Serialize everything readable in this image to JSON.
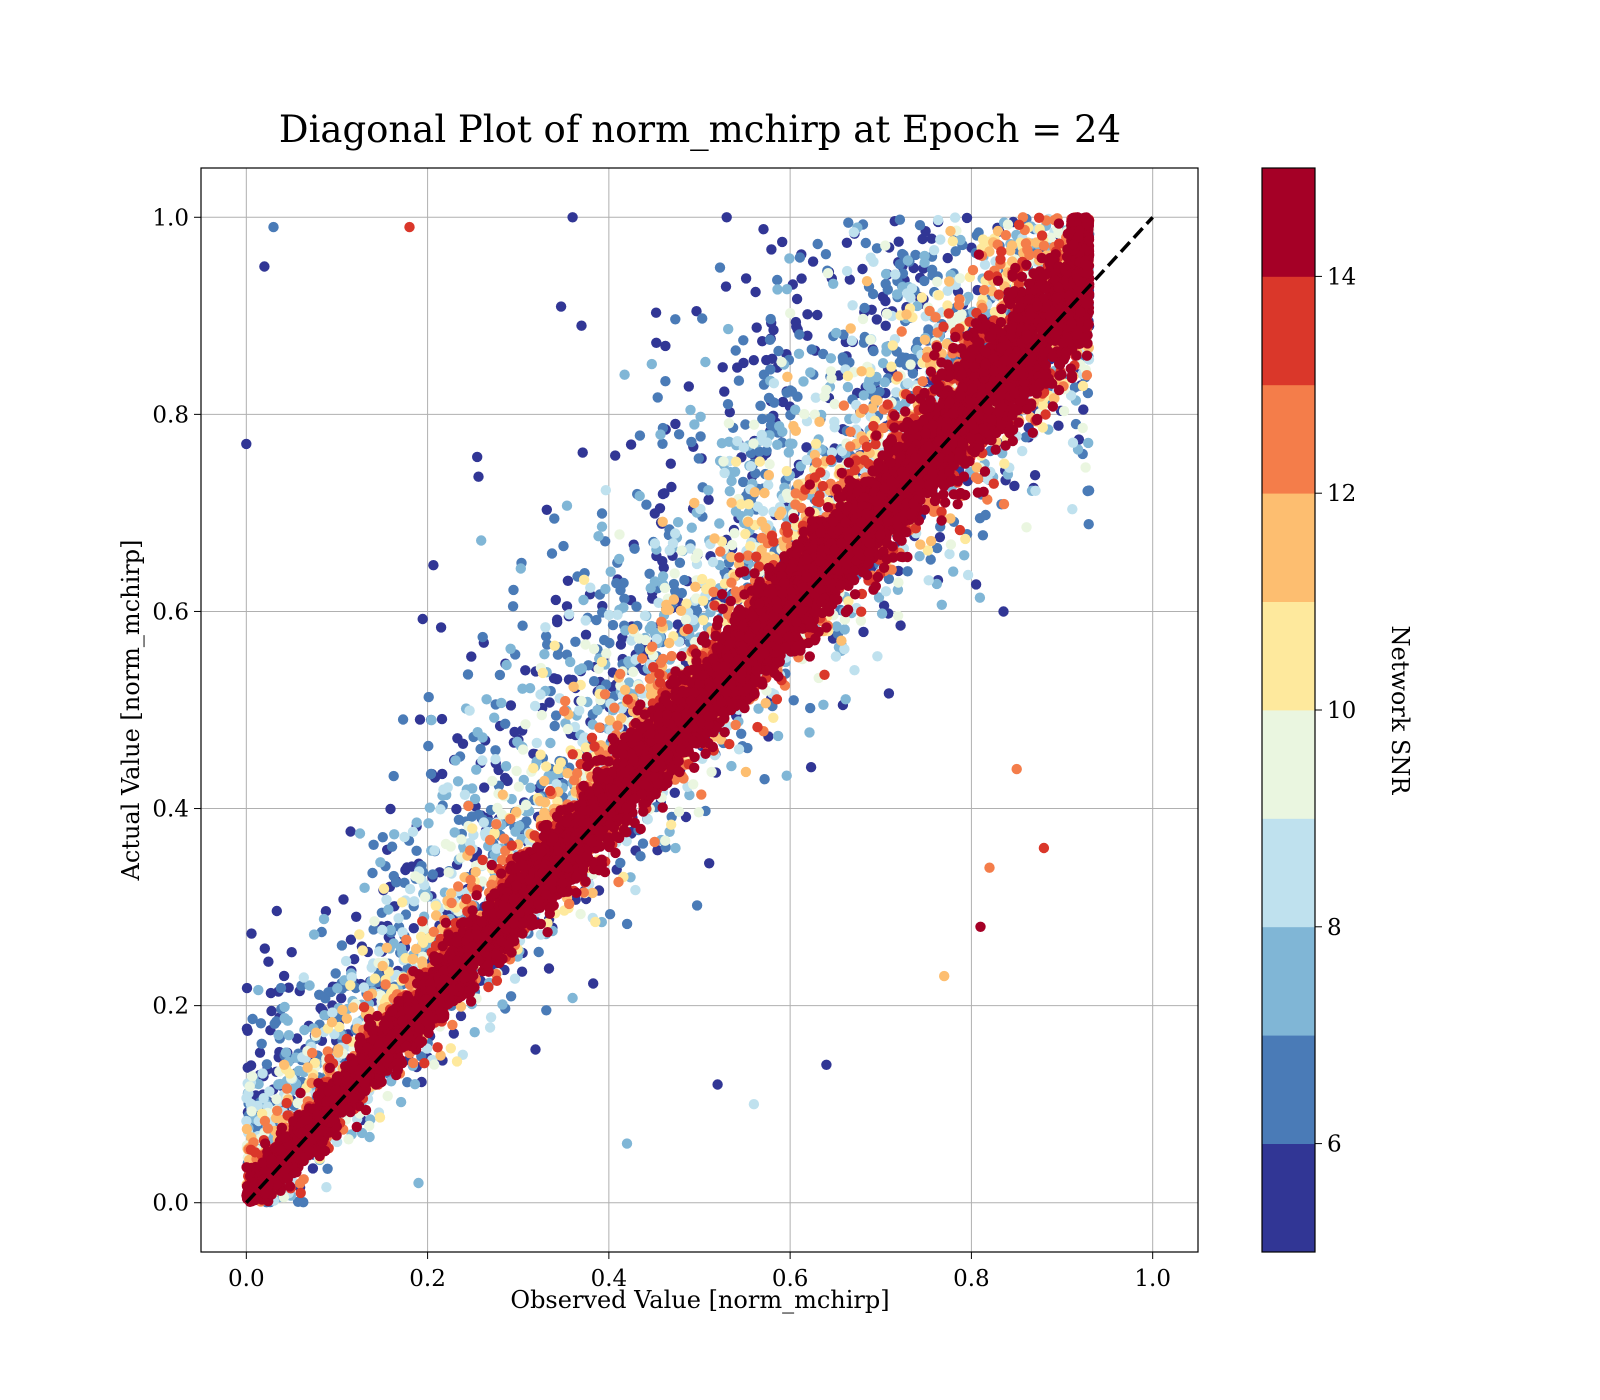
{
  "chart_data": {
    "type": "scatter",
    "title": "Diagonal Plot of norm_mchirp at Epoch = 24",
    "xlabel": "Observed Value [norm_mchirp]",
    "ylabel": "Actual Value [norm_mchirp]",
    "xlim": [
      -0.05,
      1.05
    ],
    "ylim": [
      -0.05,
      1.05
    ],
    "xticks": [
      "0.0",
      "0.2",
      "0.4",
      "0.6",
      "0.8",
      "1.0"
    ],
    "yticks": [
      "0.0",
      "0.2",
      "0.4",
      "0.6",
      "0.8",
      "1.0"
    ],
    "grid": true,
    "reference_line": {
      "style": "dashed",
      "color": "#000000",
      "from": [
        0,
        0
      ],
      "to": [
        1,
        1
      ]
    },
    "colorbar": {
      "label": "Network SNR",
      "range": [
        5,
        15
      ],
      "ticks": [
        "6",
        "8",
        "10",
        "12",
        "14"
      ],
      "bins": [
        {
          "range": [
            5,
            6
          ],
          "color": "#313695"
        },
        {
          "range": [
            6,
            7
          ],
          "color": "#4a7bb7"
        },
        {
          "range": [
            7,
            8
          ],
          "color": "#80b6d6"
        },
        {
          "range": [
            8,
            9
          ],
          "color": "#bfe1ee"
        },
        {
          "range": [
            9,
            10
          ],
          "color": "#eaf6e0"
        },
        {
          "range": [
            10,
            11
          ],
          "color": "#fee99d"
        },
        {
          "range": [
            11,
            12
          ],
          "color": "#fdbe70"
        },
        {
          "range": [
            12,
            13
          ],
          "color": "#f47d4a"
        },
        {
          "range": [
            13,
            14
          ],
          "color": "#da372a"
        },
        {
          "range": [
            14,
            15
          ],
          "color": "#a50026"
        }
      ]
    },
    "series": [
      {
        "color_by": "Network SNR",
        "note_points": "dense cloud of ~tens of thousands of points along y = x; high-SNR points tightly clustered on diagonal, low-SNR points spread mostly above the diagonal",
        "points": [
          {
            "x": 0.02,
            "y": 0.95,
            "snr": 5.5
          },
          {
            "x": 0.03,
            "y": 0.99,
            "snr": 6.5
          },
          {
            "x": 0.18,
            "y": 0.99,
            "snr": 13.5
          },
          {
            "x": 0.36,
            "y": 1.0,
            "snr": 5.5
          },
          {
            "x": 0.53,
            "y": 1.0,
            "snr": 5.5
          },
          {
            "x": 0.0,
            "y": 0.77,
            "snr": 5.5
          },
          {
            "x": 0.88,
            "y": 0.36,
            "snr": 13.5
          },
          {
            "x": 0.81,
            "y": 0.28,
            "snr": 14.5
          },
          {
            "x": 0.77,
            "y": 0.23,
            "snr": 11.5
          },
          {
            "x": 0.64,
            "y": 0.14,
            "snr": 5.5
          },
          {
            "x": 0.56,
            "y": 0.1,
            "snr": 8.5
          },
          {
            "x": 0.52,
            "y": 0.12,
            "snr": 5.5
          },
          {
            "x": 0.42,
            "y": 0.06,
            "snr": 7.5
          },
          {
            "x": 0.19,
            "y": 0.02,
            "snr": 7.5
          },
          {
            "x": 0.93,
            "y": 0.92,
            "snr": 6.5
          },
          {
            "x": 0.06,
            "y": 0.01,
            "snr": 13.5
          },
          {
            "x": 0.82,
            "y": 0.34,
            "snr": 12.5
          },
          {
            "x": 0.85,
            "y": 0.44,
            "snr": 12.5
          }
        ]
      }
    ]
  }
}
